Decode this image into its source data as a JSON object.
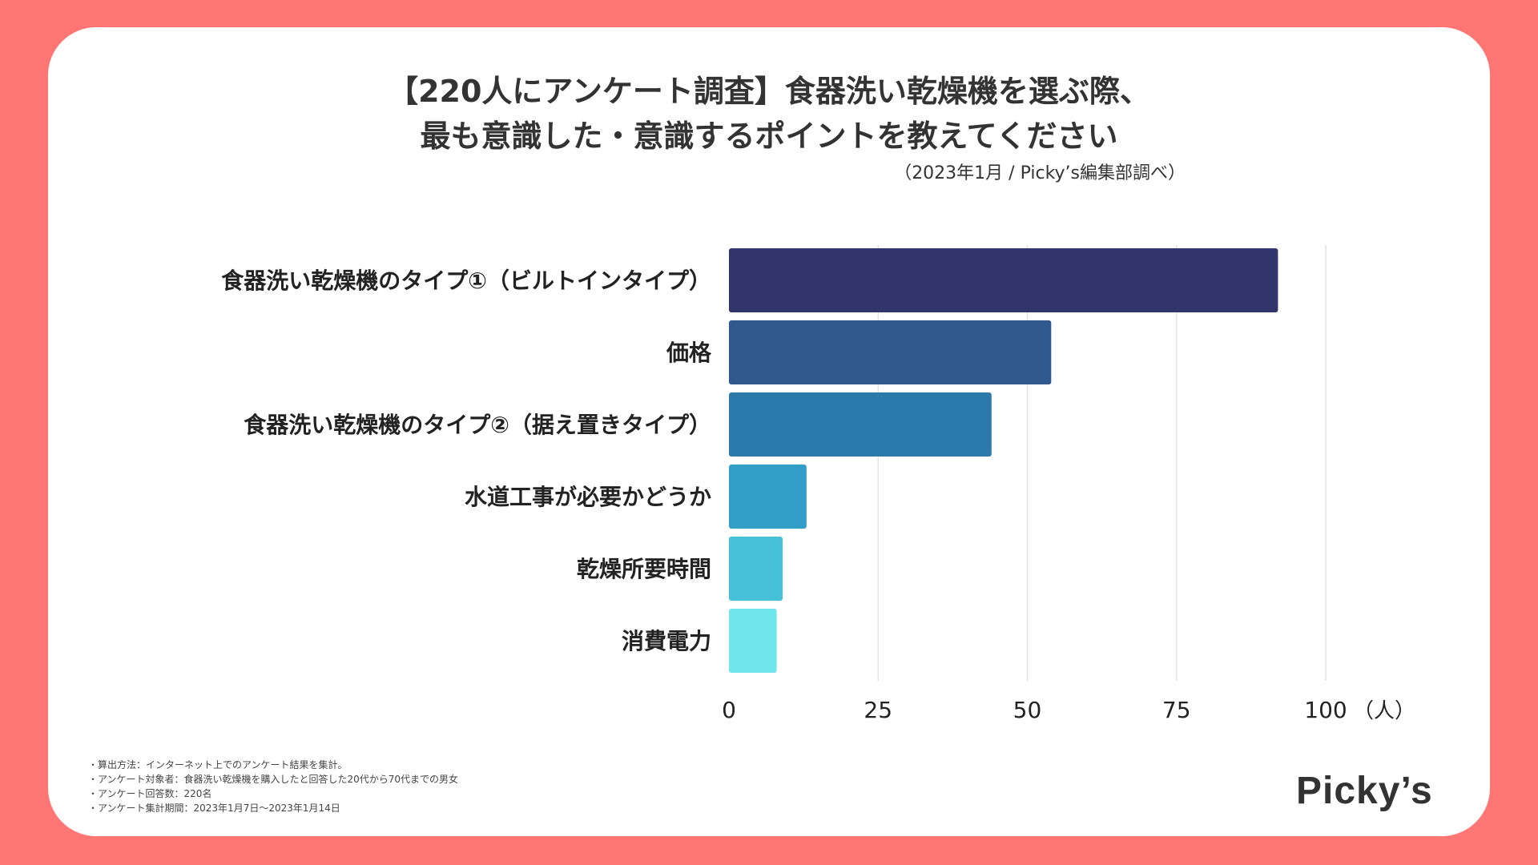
{
  "title": {
    "line1": "【220人にアンケート調査】食器洗い乾燥機を選ぶ際、",
    "line2": "最も意識した・意識するポイントを教えてください"
  },
  "source": "（2023年1月 / Picky’s編集部調べ）",
  "chart_data": {
    "type": "bar",
    "orientation": "horizontal",
    "categories": [
      "食器洗い乾燥機のタイプ①（ビルトインタイプ）",
      "価格",
      "食器洗い乾燥機のタイプ②（据え置きタイプ）",
      "水道工事が必要かどうか",
      "乾燥所要時間",
      "消費電力"
    ],
    "values": [
      92,
      54,
      44,
      13,
      9,
      8
    ],
    "colors": [
      "#31356b",
      "#2f588f",
      "#2c7aab",
      "#339ec8",
      "#47c0d9",
      "#6fe6e9"
    ],
    "xlim": [
      0,
      100
    ],
    "xticks": [
      0,
      25,
      50,
      75,
      100
    ],
    "xunit": "（人）",
    "grid": true,
    "title": "【220人にアンケート調査】食器洗い乾燥機を選ぶ際、最も意識した・意識するポイントを教えてください"
  },
  "notes": [
    "・算出方法：インターネット上でのアンケート結果を集計。",
    "・アンケート対象者：食器洗い乾燥機を購入したと回答した20代から70代までの男女",
    "・アンケート回答数：220名",
    "・アンケート集計期間：2023年1月7日〜2023年1月14日"
  ],
  "logo": "Picky’s",
  "colors": {
    "background": "#ff7674",
    "card": "#ffffff",
    "text": "#333333"
  }
}
